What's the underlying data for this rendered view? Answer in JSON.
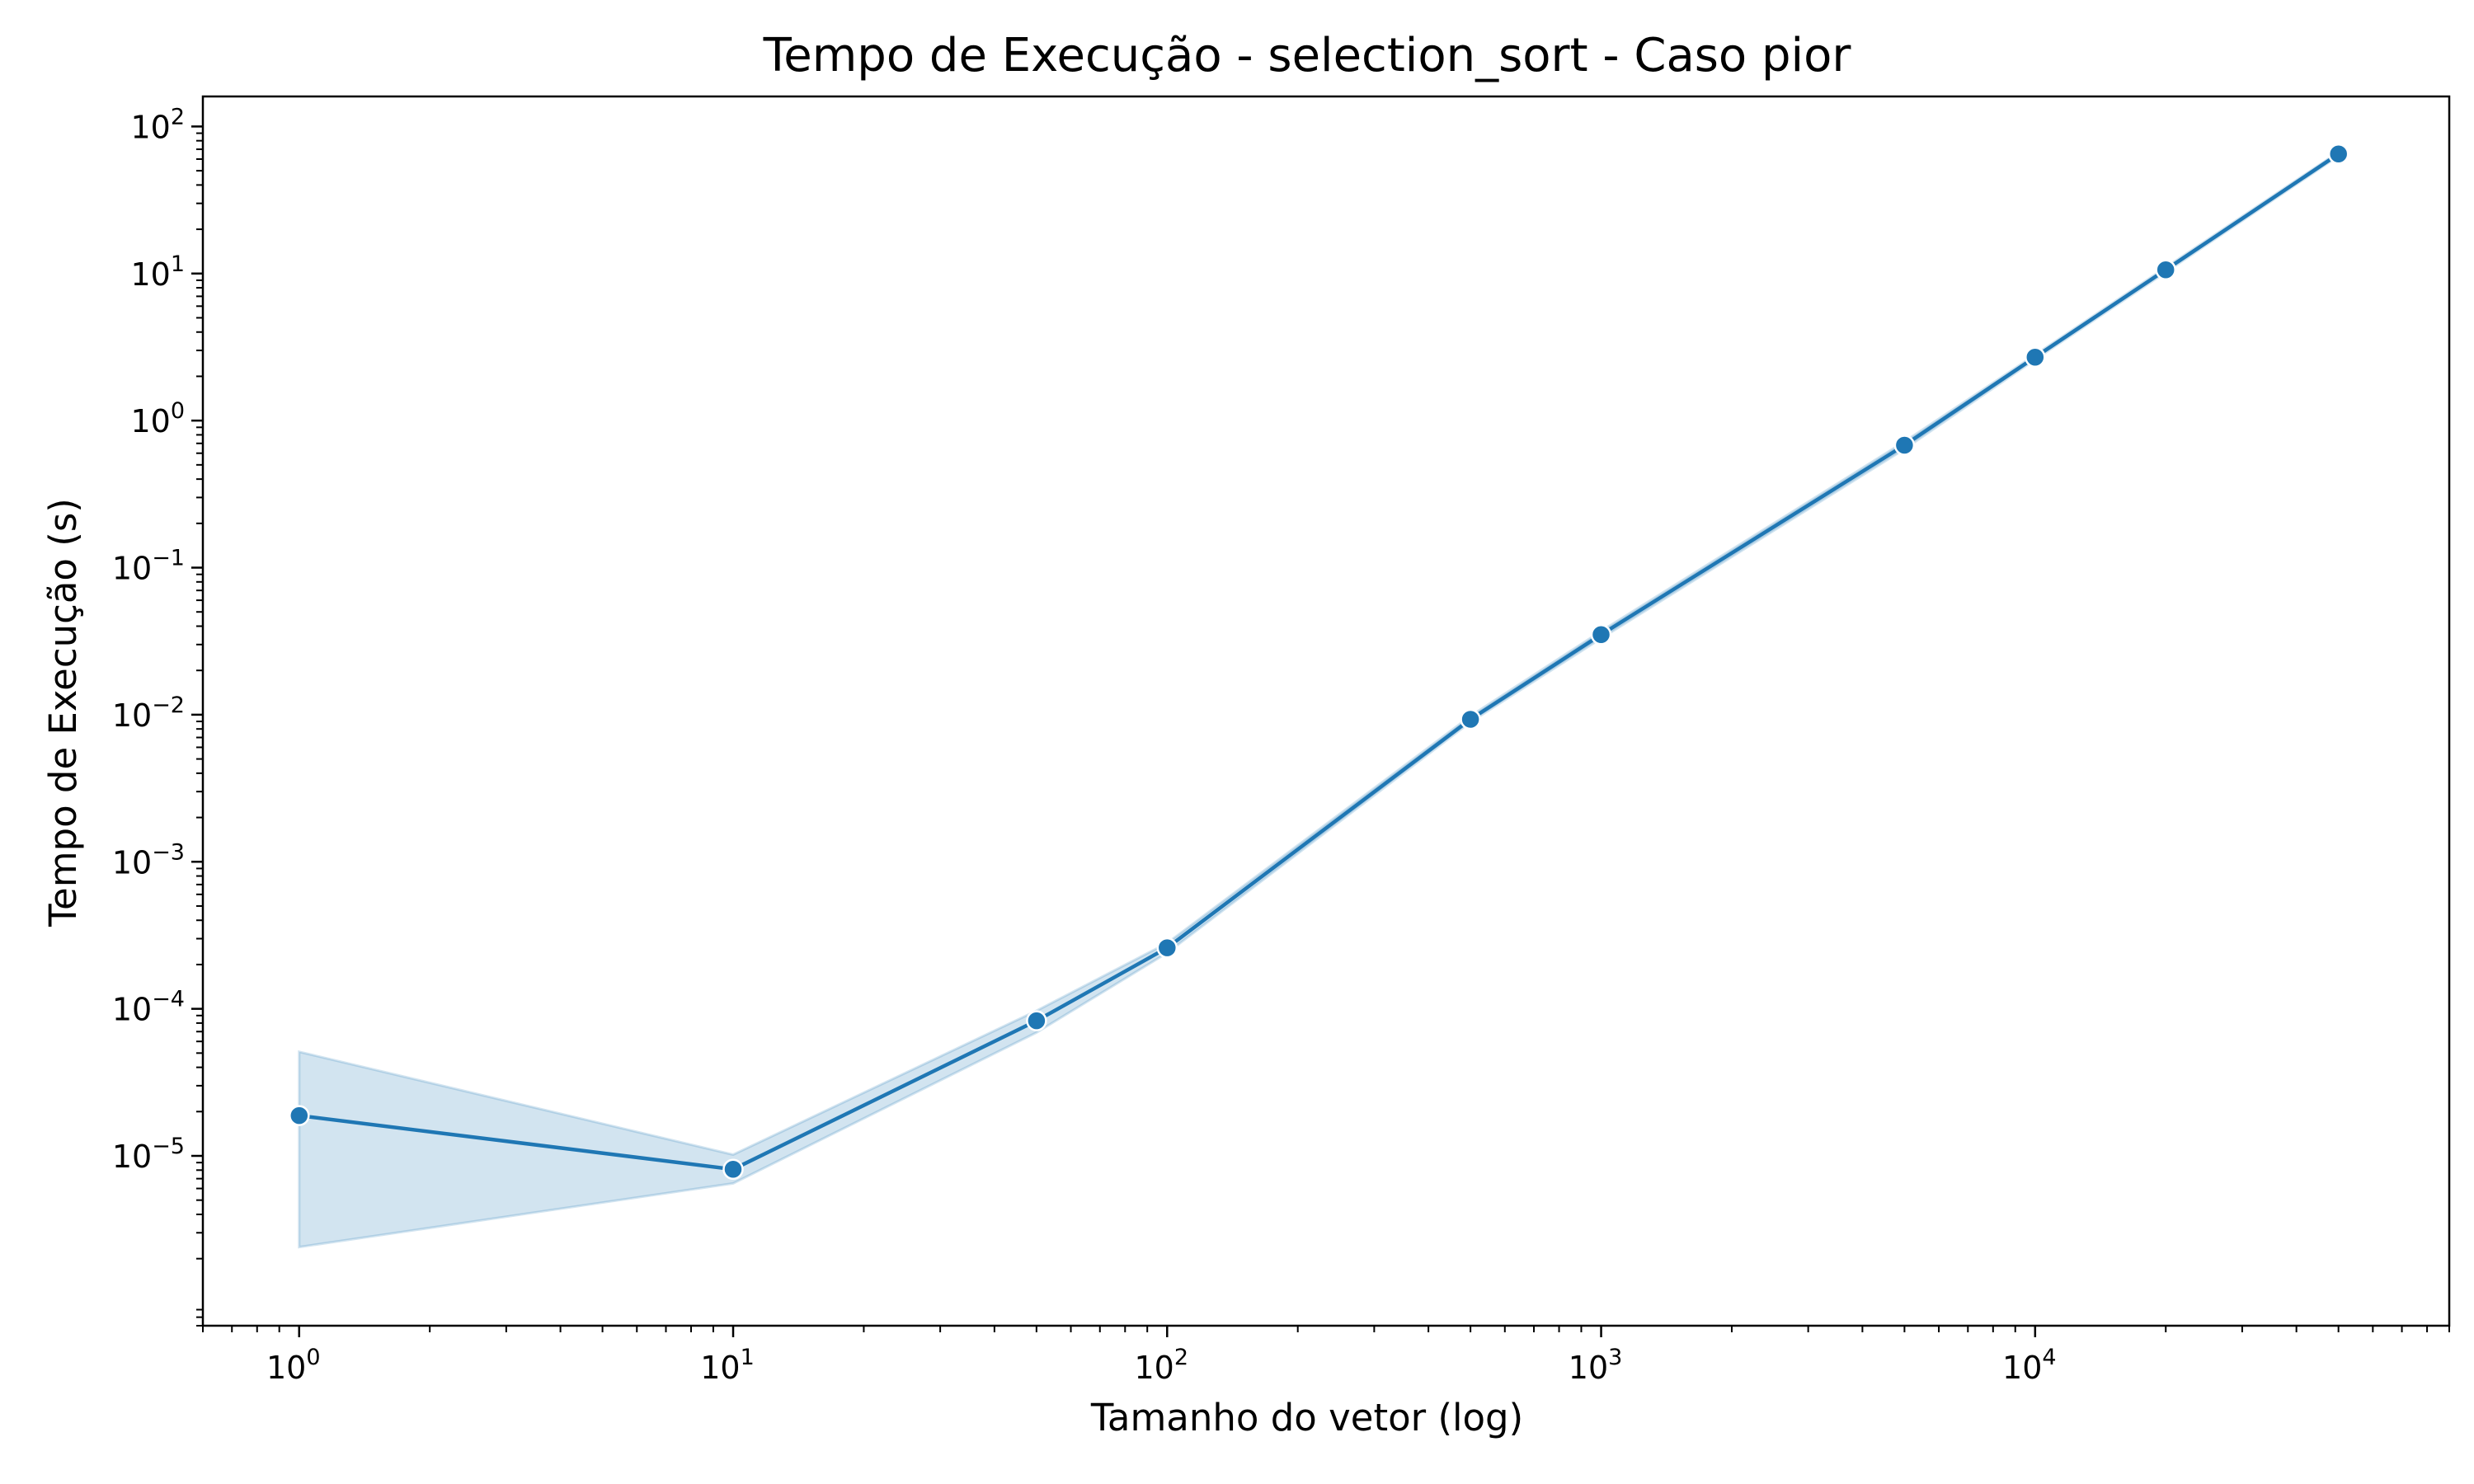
{
  "chart_data": {
    "type": "line",
    "title": "Tempo de Execução - selection_sort - Caso pior",
    "xlabel": "Tamanho do vetor (log)",
    "ylabel": "Tempo de Execução (s)",
    "xscale": "log",
    "yscale": "log",
    "xlim": [
      0.6,
      90000
    ],
    "ylim": [
      7e-07,
      160
    ],
    "grid": false,
    "legend": "none",
    "x_ticks": [
      {
        "value": 1,
        "base": "10",
        "exp": "0"
      },
      {
        "value": 10,
        "base": "10",
        "exp": "1"
      },
      {
        "value": 100,
        "base": "10",
        "exp": "2"
      },
      {
        "value": 1000,
        "base": "10",
        "exp": "3"
      },
      {
        "value": 10000,
        "base": "10",
        "exp": "4"
      }
    ],
    "y_ticks": [
      {
        "value": 1e-05,
        "base": "10",
        "exp": "−5"
      },
      {
        "value": 0.0001,
        "base": "10",
        "exp": "−4"
      },
      {
        "value": 0.001,
        "base": "10",
        "exp": "−3"
      },
      {
        "value": 0.01,
        "base": "10",
        "exp": "−2"
      },
      {
        "value": 0.1,
        "base": "10",
        "exp": "−1"
      },
      {
        "value": 1,
        "base": "10",
        "exp": "0"
      },
      {
        "value": 10,
        "base": "10",
        "exp": "1"
      },
      {
        "value": 100,
        "base": "10",
        "exp": "2"
      }
    ],
    "series": [
      {
        "x": [
          1,
          10,
          50,
          100,
          500,
          1000,
          5000,
          10000,
          20000,
          50000
        ],
        "y": [
          1.88e-05,
          8.1e-06,
          8.3e-05,
          0.00026,
          0.0093,
          0.035,
          0.68,
          2.7,
          10.6,
          65
        ],
        "ci_lower": [
          2.4e-06,
          6.5e-06,
          6.9e-05,
          0.00024,
          0.0089,
          0.033,
          0.64,
          2.6,
          10.2,
          63
        ],
        "ci_upper": [
          5.1e-05,
          1.02e-05,
          9.7e-05,
          0.00028,
          0.0098,
          0.037,
          0.72,
          2.8,
          11.0,
          67
        ],
        "color": "#1f77b4",
        "band_color": "#1f77b4"
      }
    ]
  }
}
